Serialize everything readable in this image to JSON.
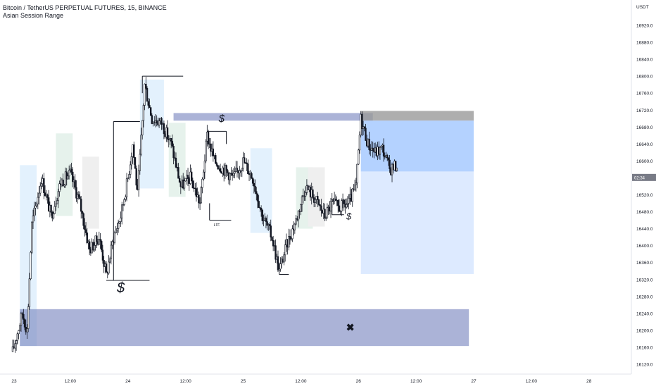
{
  "header": {
    "symbol_line": "Bitcoin / TetherUS PERPETUAL FUTURES, 15, BINANCE",
    "indicator": "Asian Session Range"
  },
  "price_axis": {
    "currency": "USDT",
    "current_label": "16,561.4 (partially legible)"
  },
  "annotations": {
    "liquidity_symbol": "$",
    "ltf_label": "LTF",
    "target_mark": "✖"
  },
  "colors": {
    "candle": "#131722",
    "zone_blue": "#7885be",
    "position_target": "#b0d0ff",
    "position_stop_fill": "#d9e8ff",
    "entry_grey": "#9a9a9a",
    "session_blue": "#e3f1fd",
    "session_green": "#e6f2ec",
    "session_grey": "#efefef"
  },
  "chart_data": {
    "type": "candlestick",
    "title": "Bitcoin / TetherUS PERPETUAL FUTURES, 15, BINANCE",
    "subtitle": "Asian Session Range",
    "ylim": [
      16090,
      16990
    ],
    "y_ticks": [
      16120.0,
      16160.0,
      16200.0,
      16240.0,
      16280.0,
      16320.0,
      16360.0,
      16400.0,
      16440.0,
      16480.0,
      16520.0,
      16560.0,
      16600.0,
      16640.0,
      16680.0,
      16720.0,
      16760.0,
      16800.0,
      16840.0,
      16880.0,
      16920.0
    ],
    "x_ticks": [
      "23",
      "12:00",
      "24",
      "12:00",
      "25",
      "12:00",
      "26",
      "12:00",
      "27",
      "12:00",
      "28"
    ],
    "x_tick_times": [
      0,
      12,
      24,
      36,
      48,
      60,
      72,
      84,
      96,
      108,
      120
    ],
    "xlim": [
      -3.2,
      130
    ],
    "price_path": [
      [
        0,
        16150
      ],
      [
        2,
        16240
      ],
      [
        3,
        16200
      ],
      [
        4,
        16450
      ],
      [
        6,
        16560
      ],
      [
        8,
        16470
      ],
      [
        10,
        16550
      ],
      [
        12,
        16570
      ],
      [
        14,
        16500
      ],
      [
        16,
        16390
      ],
      [
        18,
        16420
      ],
      [
        19.5,
        16330
      ],
      [
        21,
        16420
      ],
      [
        22.5,
        16470
      ],
      [
        24,
        16560
      ],
      [
        25,
        16640
      ],
      [
        26,
        16520
      ],
      [
        27.5,
        16780
      ],
      [
        29,
        16700
      ],
      [
        31,
        16690
      ],
      [
        33,
        16640
      ],
      [
        35,
        16540
      ],
      [
        37,
        16560
      ],
      [
        39,
        16500
      ],
      [
        40.5,
        16660
      ],
      [
        42,
        16600
      ],
      [
        44,
        16580
      ],
      [
        46,
        16560
      ],
      [
        48,
        16600
      ],
      [
        50,
        16560
      ],
      [
        52,
        16470
      ],
      [
        54,
        16420
      ],
      [
        55.5,
        16340
      ],
      [
        57,
        16400
      ],
      [
        59,
        16460
      ],
      [
        61,
        16540
      ],
      [
        63,
        16510
      ],
      [
        65,
        16470
      ],
      [
        66.5,
        16500
      ],
      [
        68,
        16490
      ],
      [
        70,
        16500
      ],
      [
        71.5,
        16540
      ],
      [
        72.5,
        16700
      ],
      [
        74,
        16640
      ],
      [
        75.5,
        16620
      ],
      [
        77,
        16630
      ],
      [
        78.5,
        16580
      ],
      [
        80,
        16590
      ]
    ],
    "zones": [
      {
        "type": "supply-demand",
        "t0": 1.5,
        "t1": 95,
        "p0": 16163,
        "p1": 16250,
        "color": "#7885be"
      },
      {
        "type": "supply-demand",
        "t0": 33.5,
        "t1": 75,
        "p0": 16695,
        "p1": 16713,
        "color": "#7885be"
      }
    ],
    "session_boxes": [
      {
        "t0": 1.5,
        "t1": 5,
        "p0": 16163,
        "p1": 16590,
        "color": "blue"
      },
      {
        "t0": 9,
        "t1": 12.5,
        "p0": 16470,
        "p1": 16665,
        "color": "green"
      },
      {
        "t0": 14.5,
        "t1": 18,
        "p0": 16440,
        "p1": 16610,
        "color": "grey"
      },
      {
        "t0": 26.5,
        "t1": 31.5,
        "p0": 16535,
        "p1": 16792,
        "color": "blue"
      },
      {
        "t0": 32.5,
        "t1": 36,
        "p0": 16515,
        "p1": 16690,
        "color": "green"
      },
      {
        "t0": 49.5,
        "t1": 54,
        "p0": 16430,
        "p1": 16630,
        "color": "blue"
      },
      {
        "t0": 59,
        "t1": 62.5,
        "p0": 16440,
        "p1": 16585,
        "color": "green"
      },
      {
        "t0": 61.5,
        "t1": 65,
        "p0": 16445,
        "p1": 16585,
        "color": "grey"
      }
    ],
    "levels": [
      {
        "t0": 21,
        "t1": 26.5,
        "price": 16693
      },
      {
        "t0": 27,
        "t1": 35.5,
        "price": 16800
      },
      {
        "t0": 19.5,
        "t1": 28.5,
        "price": 16318
      },
      {
        "t0": 41,
        "t1": 45.5,
        "price": 16460
      },
      {
        "t0": 40.5,
        "t1": 44.5,
        "price": 16670
      },
      {
        "t0": 55.5,
        "t1": 57.5,
        "price": 16332
      },
      {
        "t0": 66.5,
        "t1": 69,
        "price": 16473
      }
    ],
    "position": {
      "t0": 72.5,
      "t1": 96,
      "entry": 16575,
      "stop": 16718,
      "stop_inner": 16695,
      "target": 16333
    }
  }
}
